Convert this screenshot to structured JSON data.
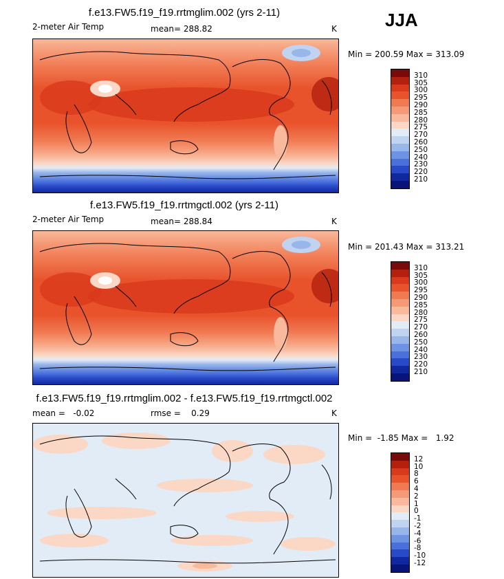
{
  "season": "JJA",
  "panels": [
    {
      "title": "f.e13.FW5.f19_f19.rrtmglim.002 (yrs 2-11)",
      "left_label": "2-meter Air Temp",
      "stat_label": "mean= 288.82",
      "units": "K",
      "minmax": "Min = 200.59 Max = 313.09",
      "levels": [
        "310",
        "305",
        "300",
        "295",
        "290",
        "285",
        "280",
        "275",
        "270",
        "260",
        "250",
        "240",
        "230",
        "220",
        "210"
      ]
    },
    {
      "title": "f.e13.FW5.f19_f19.rrtmgctl.002 (yrs 2-11)",
      "left_label": "2-meter Air Temp",
      "stat_label": "mean= 288.84",
      "units": "K",
      "minmax": "Min = 201.43 Max = 313.21",
      "levels": [
        "310",
        "305",
        "300",
        "295",
        "290",
        "285",
        "280",
        "275",
        "270",
        "260",
        "250",
        "240",
        "230",
        "220",
        "210"
      ]
    },
    {
      "title": "f.e13.FW5.f19_f19.rrtmglim.002 - f.e13.FW5.f19_f19.rrtmgctl.002",
      "left_label": "mean =   -0.02",
      "stat_label": "rmse =    0.29",
      "units": "K",
      "minmax": "Min =  -1.85 Max =   1.92",
      "levels": [
        "12",
        "10",
        "8",
        "6",
        "4",
        "2",
        "1",
        "0",
        "-1",
        "-2",
        "-4",
        "-6",
        "-8",
        "-10",
        "-12"
      ]
    }
  ],
  "colors": {
    "colorbar": [
      "#7a0a0a",
      "#b3200e",
      "#d93a1c",
      "#e8532c",
      "#f07a52",
      "#f59a77",
      "#f8b99c",
      "#fad8c5",
      "#e2ecf7",
      "#c0d3f0",
      "#98b6ea",
      "#6f93e4",
      "#4a70dc",
      "#2849c8",
      "#10289e",
      "#08147a"
    ]
  },
  "chart_data": [
    {
      "type": "heatmap",
      "title": "f.e13.FW5.f19_f19.rrtmglim.002 (yrs 2-11)",
      "variable": "2-meter Air Temp",
      "units": "K",
      "mean": 288.82,
      "min": 200.59,
      "max": 313.09,
      "contour_levels": [
        210,
        220,
        230,
        240,
        250,
        260,
        270,
        275,
        280,
        285,
        290,
        295,
        300,
        305,
        310
      ]
    },
    {
      "type": "heatmap",
      "title": "f.e13.FW5.f19_f19.rrtmgctl.002 (yrs 2-11)",
      "variable": "2-meter Air Temp",
      "units": "K",
      "mean": 288.84,
      "min": 201.43,
      "max": 313.21,
      "contour_levels": [
        210,
        220,
        230,
        240,
        250,
        260,
        270,
        275,
        280,
        285,
        290,
        295,
        300,
        305,
        310
      ]
    },
    {
      "type": "heatmap",
      "title": "f.e13.FW5.f19_f19.rrtmglim.002 - f.e13.FW5.f19_f19.rrtmgctl.002",
      "units": "K",
      "mean": -0.02,
      "rmse": 0.29,
      "min": -1.85,
      "max": 1.92,
      "contour_levels": [
        -12,
        -10,
        -8,
        -6,
        -4,
        -2,
        -1,
        0,
        1,
        2,
        4,
        6,
        8,
        10,
        12
      ]
    }
  ]
}
